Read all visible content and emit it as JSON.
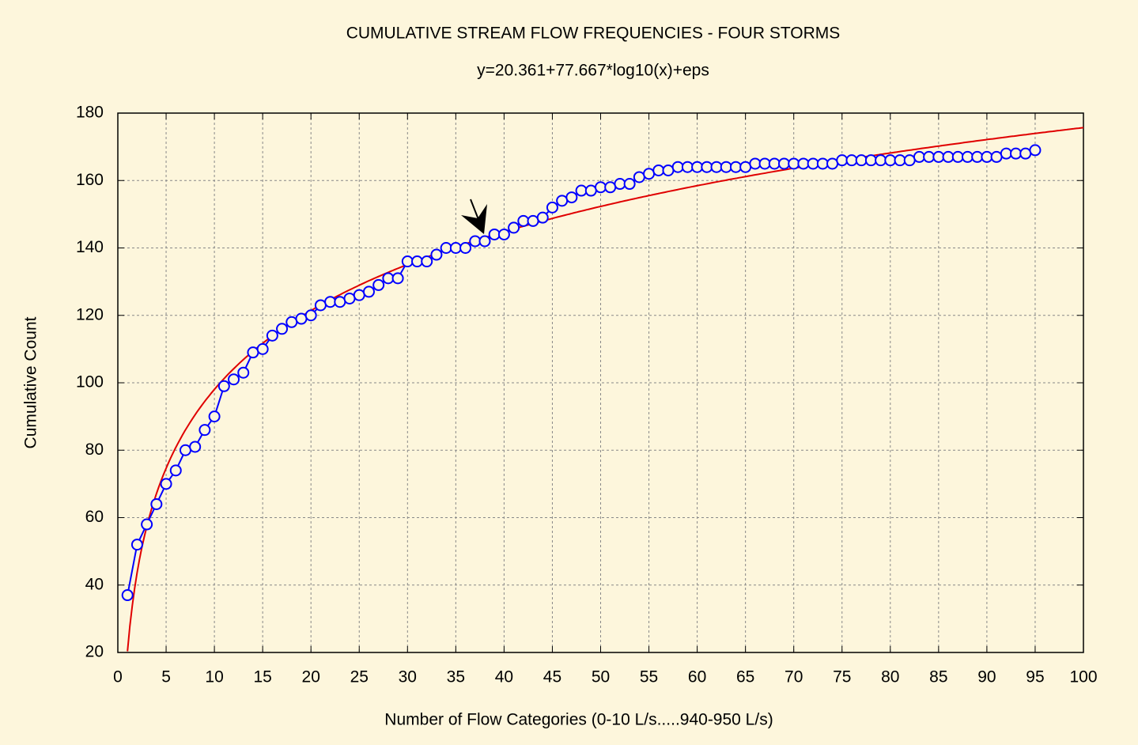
{
  "chart_data": {
    "type": "line",
    "title": "CUMULATIVE STREAM FLOW FREQUENCIES - FOUR STORMS",
    "subtitle": "y=20.361+77.667*log10(x)+eps",
    "x_label": "Number of Flow Categories (0-10 L/s.....940-950 L/s)",
    "y_label": "Cumulative Count",
    "x": [
      1,
      2,
      3,
      4,
      5,
      6,
      7,
      8,
      9,
      10,
      11,
      12,
      13,
      14,
      15,
      16,
      17,
      18,
      19,
      20,
      21,
      22,
      23,
      24,
      25,
      26,
      27,
      28,
      29,
      30,
      31,
      32,
      33,
      34,
      35,
      36,
      37,
      38,
      39,
      40,
      41,
      42,
      43,
      44,
      45,
      46,
      47,
      48,
      49,
      50,
      51,
      52,
      53,
      54,
      55,
      56,
      57,
      58,
      59,
      60,
      61,
      62,
      63,
      64,
      65,
      66,
      67,
      68,
      69,
      70,
      71,
      72,
      73,
      74,
      75,
      76,
      77,
      78,
      79,
      80,
      81,
      82,
      83,
      84,
      85,
      86,
      87,
      88,
      89,
      90,
      91,
      92,
      93,
      94,
      95
    ],
    "values": [
      37,
      52,
      58,
      64,
      70,
      74,
      80,
      81,
      86,
      90,
      99,
      101,
      103,
      109,
      110,
      114,
      116,
      118,
      119,
      120,
      123,
      124,
      124,
      125,
      126,
      127,
      129,
      131,
      131,
      136,
      136,
      136,
      138,
      140,
      140,
      140,
      142,
      142,
      144,
      144,
      146,
      148,
      148,
      149,
      152,
      154,
      155,
      157,
      157,
      158,
      158,
      159,
      159,
      161,
      162,
      163,
      163,
      164,
      164,
      164,
      164,
      164,
      164,
      164,
      164,
      165,
      165,
      165,
      165,
      165,
      165,
      165,
      165,
      165,
      166,
      166,
      166,
      166,
      166,
      166,
      166,
      166,
      167,
      167,
      167,
      167,
      167,
      167,
      167,
      167,
      167,
      168,
      168,
      168,
      169
    ],
    "color": "#0000ff",
    "fit": {
      "intercept": 20.361,
      "slope": 77.667,
      "color": "#e00000"
    },
    "xlim": [
      0,
      100
    ],
    "xticks": [
      0,
      5,
      10,
      15,
      20,
      25,
      30,
      35,
      40,
      45,
      50,
      55,
      60,
      65,
      70,
      75,
      80,
      85,
      90,
      95,
      100
    ],
    "ylim": [
      20,
      180
    ],
    "yticks": [
      20,
      40,
      60,
      80,
      100,
      120,
      140,
      160,
      180
    ],
    "grid": true
  }
}
